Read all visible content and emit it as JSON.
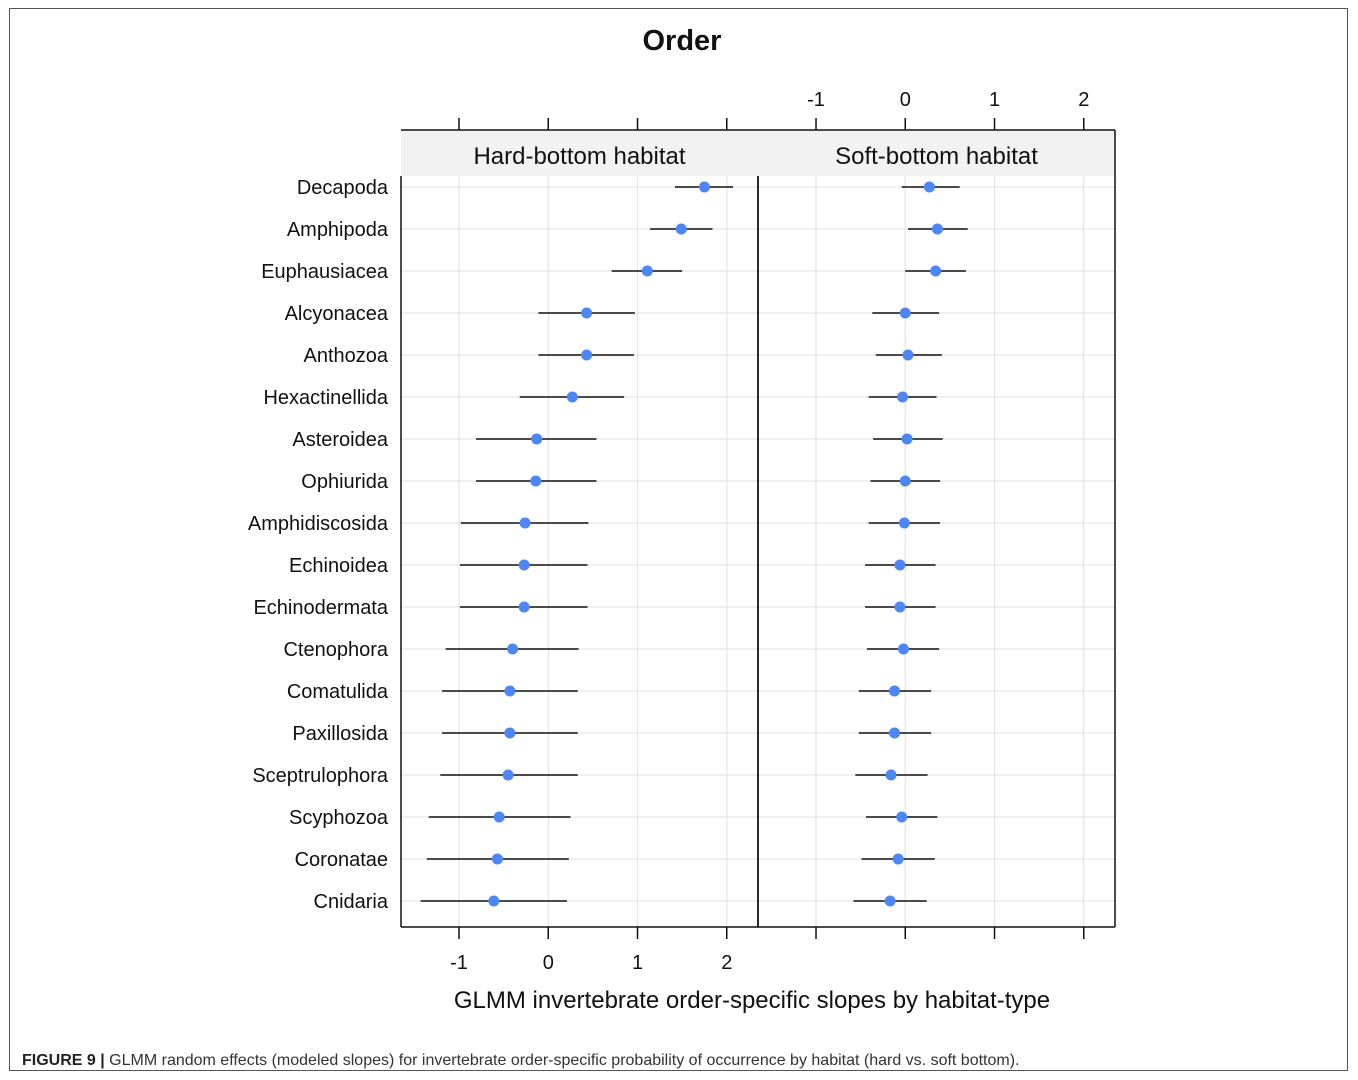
{
  "figure": {
    "label": "FIGURE 9 |",
    "caption": " GLMM random effects (modeled slopes) for invertebrate order-specific probability of occurrence by habitat (hard vs. soft bottom)."
  },
  "colors": {
    "point": "#4d86f7",
    "line": "#111111",
    "grid": "#e6e6e6",
    "strip": "#f2f2f2"
  },
  "chart_data": {
    "type": "scatter",
    "title": "Order",
    "xlabel": "GLMM invertebrate order-specific slopes by habitat-type",
    "ylabel": "",
    "xlim": [
      -1.65,
      2.35
    ],
    "xticks": [
      -1,
      0,
      1,
      2
    ],
    "xtick_labels": [
      "-1",
      "0",
      "1",
      "2"
    ],
    "grid": true,
    "categories": [
      "Decapoda",
      "Amphipoda",
      "Euphausiacea",
      "Alcyonacea",
      "Anthozoa",
      "Hexactinellida",
      "Asteroidea",
      "Ophiurida",
      "Amphidiscosida",
      "Echinoidea",
      "Echinodermata",
      "Ctenophora",
      "Comatulida",
      "Paxillosida",
      "Sceptrulophora",
      "Scyphozoa",
      "Coronatae",
      "Cnidaria"
    ],
    "panels": [
      {
        "name": "Hard-bottom habitat",
        "estimate": [
          1.75,
          1.49,
          1.11,
          0.43,
          0.43,
          0.27,
          -0.13,
          -0.14,
          -0.26,
          -0.27,
          -0.27,
          -0.4,
          -0.43,
          -0.43,
          -0.45,
          -0.55,
          -0.57,
          -0.61
        ],
        "lower": [
          1.42,
          1.14,
          0.71,
          -0.11,
          -0.11,
          -0.32,
          -0.81,
          -0.81,
          -0.98,
          -0.99,
          -0.99,
          -1.15,
          -1.19,
          -1.19,
          -1.21,
          -1.34,
          -1.36,
          -1.43
        ],
        "upper": [
          2.07,
          1.84,
          1.5,
          0.97,
          0.96,
          0.85,
          0.54,
          0.54,
          0.45,
          0.44,
          0.44,
          0.34,
          0.33,
          0.33,
          0.33,
          0.25,
          0.23,
          0.21
        ]
      },
      {
        "name": "Soft-bottom habitat",
        "estimate": [
          0.27,
          0.36,
          0.34,
          0.0,
          0.03,
          -0.03,
          0.02,
          0.0,
          -0.01,
          -0.06,
          -0.06,
          -0.02,
          -0.12,
          -0.12,
          -0.16,
          -0.04,
          -0.08,
          -0.17
        ],
        "lower": [
          -0.04,
          0.03,
          0.0,
          -0.37,
          -0.33,
          -0.41,
          -0.36,
          -0.39,
          -0.41,
          -0.45,
          -0.45,
          -0.43,
          -0.52,
          -0.52,
          -0.56,
          -0.44,
          -0.49,
          -0.58
        ],
        "upper": [
          0.61,
          0.7,
          0.68,
          0.38,
          0.41,
          0.35,
          0.42,
          0.39,
          0.39,
          0.34,
          0.34,
          0.38,
          0.29,
          0.29,
          0.25,
          0.36,
          0.33,
          0.24
        ]
      }
    ]
  }
}
